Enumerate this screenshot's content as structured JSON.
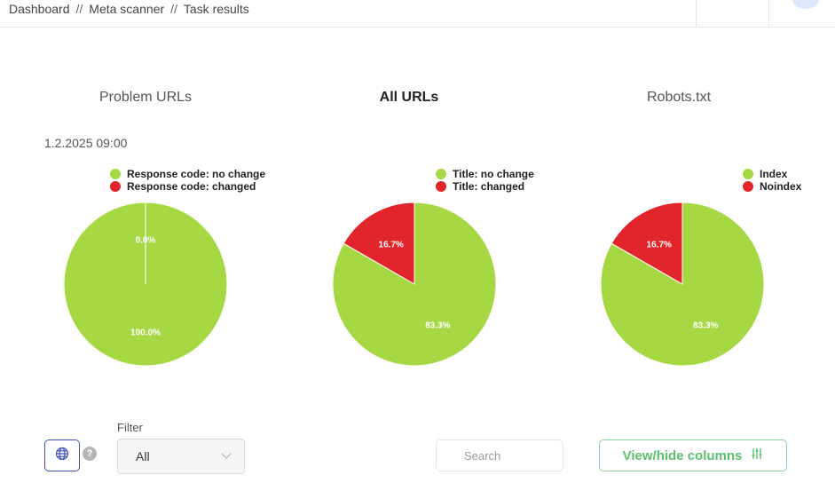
{
  "breadcrumb": {
    "items": [
      "Dashboard",
      "Meta scanner",
      "Task results"
    ],
    "separator": "//"
  },
  "tabs": [
    {
      "label": "Problem URLs",
      "active": false
    },
    {
      "label": "All URLs",
      "active": true
    },
    {
      "label": "Robots.txt",
      "active": false
    }
  ],
  "timestamp": "1.2.2025 09:00",
  "colors": {
    "green": "#a6d844",
    "red": "#e2252b",
    "accent_blue": "#3f51b5",
    "button_green": "#5cc071"
  },
  "chart_data": [
    {
      "type": "pie",
      "legend": [
        "Response code: no change",
        "Response code: changed"
      ],
      "values": [
        100.0,
        0.0
      ],
      "labels": [
        "100.0%",
        "0.0%"
      ],
      "colors": [
        "#a6d844",
        "#e2252b"
      ]
    },
    {
      "type": "pie",
      "legend": [
        "Title: no change",
        "Title: changed"
      ],
      "values": [
        83.3,
        16.7
      ],
      "labels": [
        "83.3%",
        "16.7%"
      ],
      "colors": [
        "#a6d844",
        "#e2252b"
      ]
    },
    {
      "type": "pie",
      "legend": [
        "Index",
        "Noindex"
      ],
      "values": [
        83.3,
        16.7
      ],
      "labels": [
        "83.3%",
        "16.7%"
      ],
      "colors": [
        "#a6d844",
        "#e2252b"
      ]
    }
  ],
  "toolbar": {
    "globe_icon": "globe-icon",
    "help_glyph": "?",
    "filter_label": "Filter",
    "filter_value": "All",
    "search_placeholder": "Search",
    "columns_button": "View/hide columns",
    "columns_icon": "sliders-icon"
  }
}
